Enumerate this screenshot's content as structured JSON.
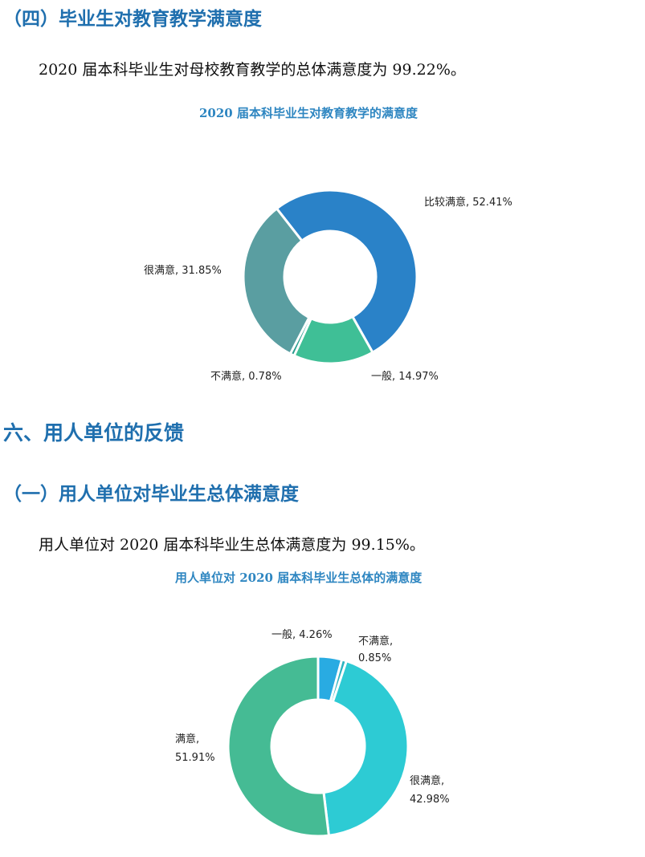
{
  "section4": {
    "heading": "（四）毕业生对教育教学满意度",
    "paragraph": "2020 届本科毕业生对母校教育教学的总体满意度为 99.22%。"
  },
  "section6": {
    "heading": "六、用人单位的反馈",
    "sub_heading": "（一）用人单位对毕业生总体满意度",
    "paragraph": "用人单位对 2020 届本科毕业生总体满意度为 99.15%。"
  },
  "chart_data": [
    {
      "type": "pie",
      "title": "2020 届本科毕业生对教育教学的满意度",
      "slices": [
        {
          "name": "比较满意",
          "value": 52.41,
          "label": "比较满意, 52.41%",
          "color": "#2a82c8"
        },
        {
          "name": "一般",
          "value": 14.97,
          "label": "一般, 14.97%",
          "color": "#3fbf96"
        },
        {
          "name": "不满意",
          "value": 0.78,
          "label": "不满意, 0.78%",
          "color": "#2a9d8f"
        },
        {
          "name": "很满意",
          "value": 31.85,
          "label": "很满意, 31.85%",
          "color": "#5a9ea1"
        }
      ]
    },
    {
      "type": "pie",
      "title": "用人单位对 2020 届本科毕业生总体的满意度",
      "slices": [
        {
          "name": "一般",
          "value": 4.26,
          "label": "一般, 4.26%",
          "color": "#29abe2"
        },
        {
          "name": "不满意",
          "value": 0.85,
          "label": "不满意,\n0.85%",
          "color": "#2bb3c0"
        },
        {
          "name": "很满意",
          "value": 42.98,
          "label": "很满意,\n42.98%",
          "color": "#2dcbd4"
        },
        {
          "name": "满意",
          "value": 51.91,
          "label": "满意,\n51.91%",
          "color": "#45bb94"
        }
      ]
    }
  ]
}
